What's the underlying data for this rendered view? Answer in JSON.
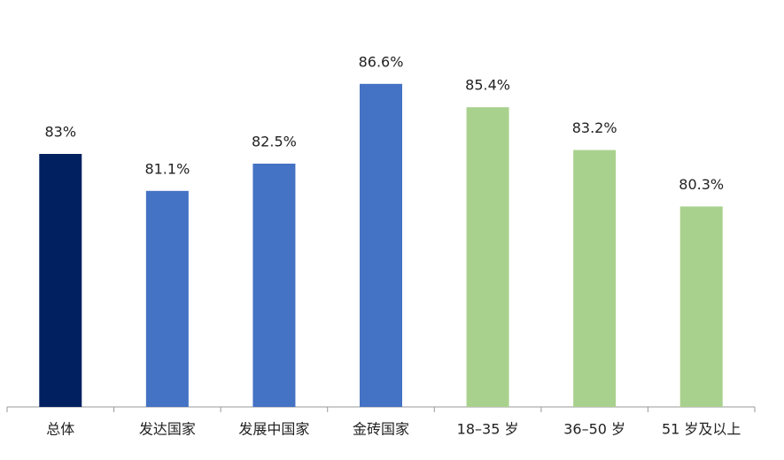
{
  "chart_data": {
    "type": "bar",
    "categories": [
      "总体",
      "发达国家",
      "发展中国家",
      "金砖国家",
      "18–35 岁",
      "36–50 岁",
      "51 岁及以上"
    ],
    "values": [
      83,
      81.1,
      82.5,
      86.6,
      85.4,
      83.2,
      80.3
    ],
    "value_labels": [
      "83%",
      "81.1%",
      "82.5%",
      "86.6%",
      "85.4%",
      "83.2%",
      "80.3%"
    ],
    "colors": [
      "#002060",
      "#4472c4",
      "#4472c4",
      "#4472c4",
      "#a9d18e",
      "#a9d18e",
      "#a9d18e"
    ],
    "ylim": [
      70,
      89
    ]
  }
}
